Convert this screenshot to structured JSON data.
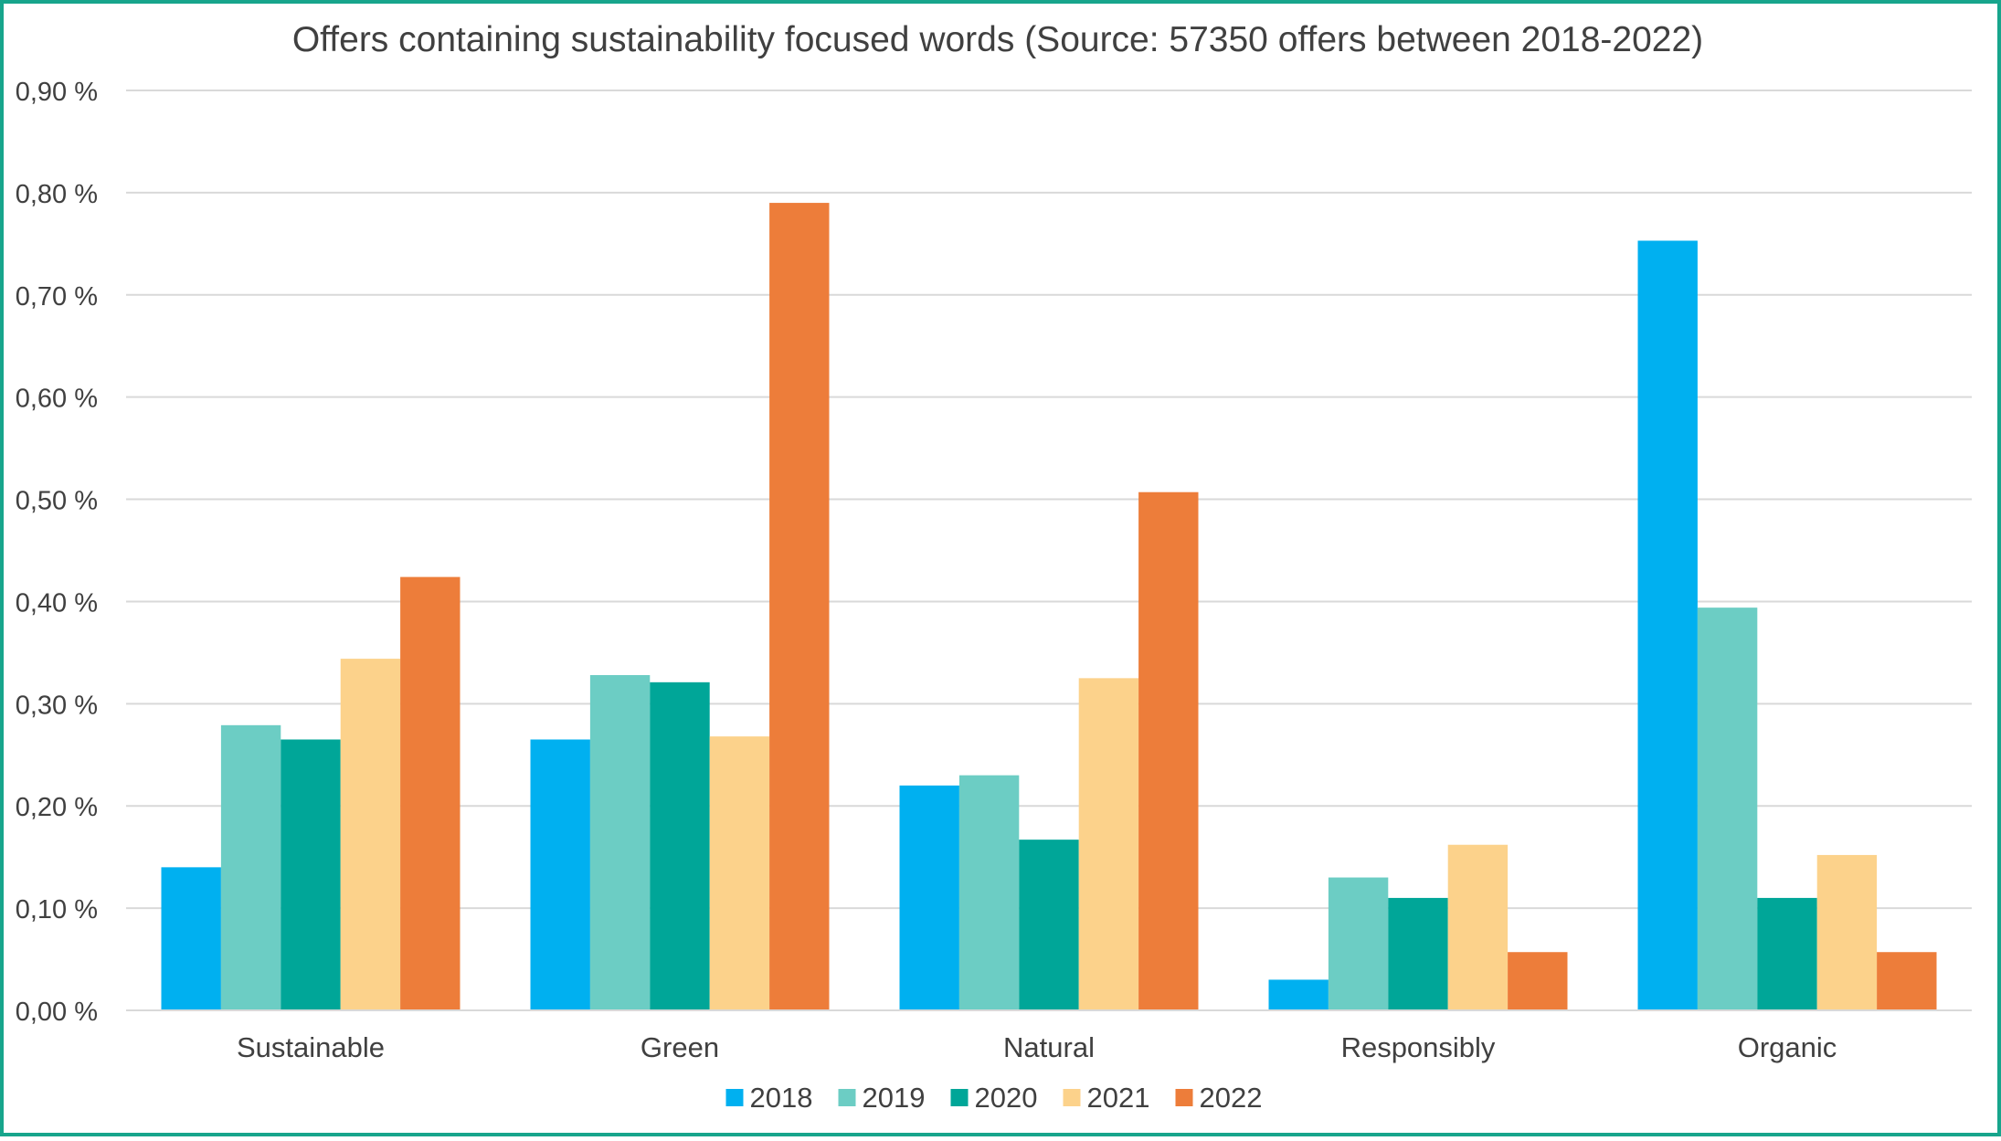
{
  "chart_data": {
    "type": "bar",
    "title": "Offers containing sustainability focused words (Source: 57350 offers between 2018-2022)",
    "xlabel": "",
    "ylabel": "",
    "ylim": [
      0,
      0.9
    ],
    "yticks": [
      0,
      0.1,
      0.2,
      0.3,
      0.4,
      0.5,
      0.6,
      0.7,
      0.8,
      0.9
    ],
    "ytick_labels": [
      "0,00 %",
      "0,10 %",
      "0,20 %",
      "0,30 %",
      "0,40 %",
      "0,50 %",
      "0,60 %",
      "0,70 %",
      "0,80 %",
      "0,90 %"
    ],
    "categories": [
      "Sustainable",
      "Green",
      "Natural",
      "Responsibly",
      "Organic"
    ],
    "series": [
      {
        "name": "2018",
        "color": "#00b0f0",
        "values": [
          0.14,
          0.265,
          0.22,
          0.03,
          0.753
        ]
      },
      {
        "name": "2019",
        "color": "#6ccdc4",
        "values": [
          0.279,
          0.328,
          0.23,
          0.13,
          0.394
        ]
      },
      {
        "name": "2020",
        "color": "#00a698",
        "values": [
          0.265,
          0.321,
          0.167,
          0.11,
          0.11
        ]
      },
      {
        "name": "2021",
        "color": "#fcd28b",
        "values": [
          0.344,
          0.268,
          0.325,
          0.162,
          0.152
        ]
      },
      {
        "name": "2022",
        "color": "#ed7d3a",
        "values": [
          0.424,
          0.79,
          0.507,
          0.057,
          0.057
        ]
      }
    ],
    "legend_position": "bottom",
    "grid": true,
    "frame_color": "#17a58c",
    "grid_color": "#d9d9d9"
  }
}
